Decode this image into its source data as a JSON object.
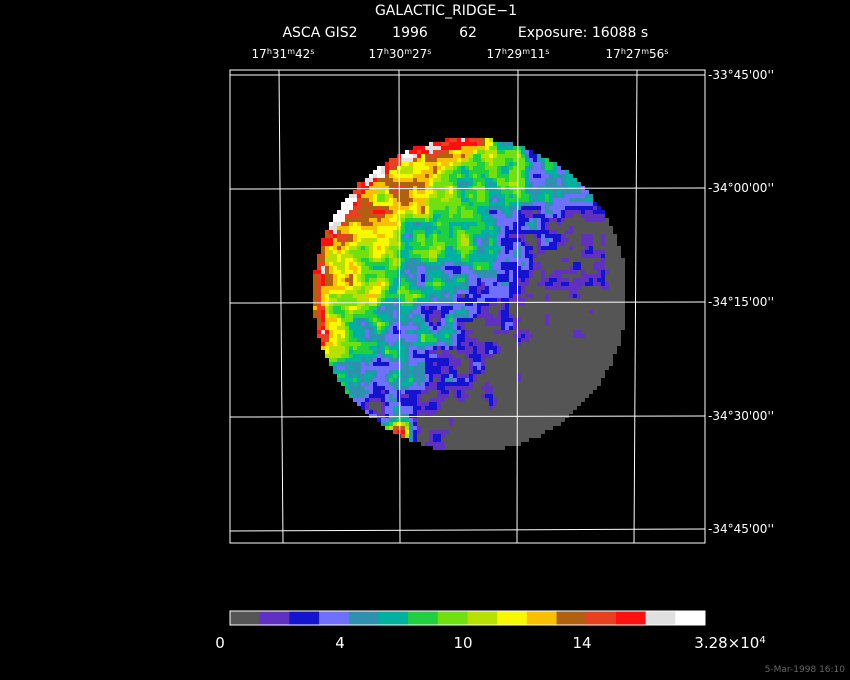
{
  "header": {
    "title": "GALACTIC_RIDGE−1",
    "instrument": "ASCA GIS2",
    "year": "1996",
    "number": "62",
    "exposure": "Exposure: 16088 s"
  },
  "ra_labels": [
    [
      "17",
      "h",
      "31",
      "m",
      "42",
      "s"
    ],
    [
      "17",
      "h",
      "30",
      "m",
      "27",
      "s"
    ],
    [
      "17",
      "h",
      "29",
      "m",
      "11",
      "s"
    ],
    [
      "17",
      "h",
      "27",
      "m",
      "56",
      "s"
    ]
  ],
  "dec_labels": [
    "-33°45'00''",
    "-34°00'00''",
    "-34°15'00''",
    "-34°30'00''",
    "-34°45'00''"
  ],
  "colorbar": {
    "colors": [
      "#555555",
      "#6030c0",
      "#1414d0",
      "#7070ff",
      "#3090b0",
      "#00b0a0",
      "#20d040",
      "#70e010",
      "#b8e000",
      "#f8f800",
      "#f8c000",
      "#b06010",
      "#e84020",
      "#ff1010",
      "#e0e0e0",
      "#ffffff"
    ],
    "labels": [
      [
        "0"
      ],
      [
        "4"
      ],
      [
        "10"
      ],
      [
        "14"
      ],
      [
        "3.28×10",
        "4"
      ]
    ]
  },
  "footer": "5-Mar-1998 16:10"
}
